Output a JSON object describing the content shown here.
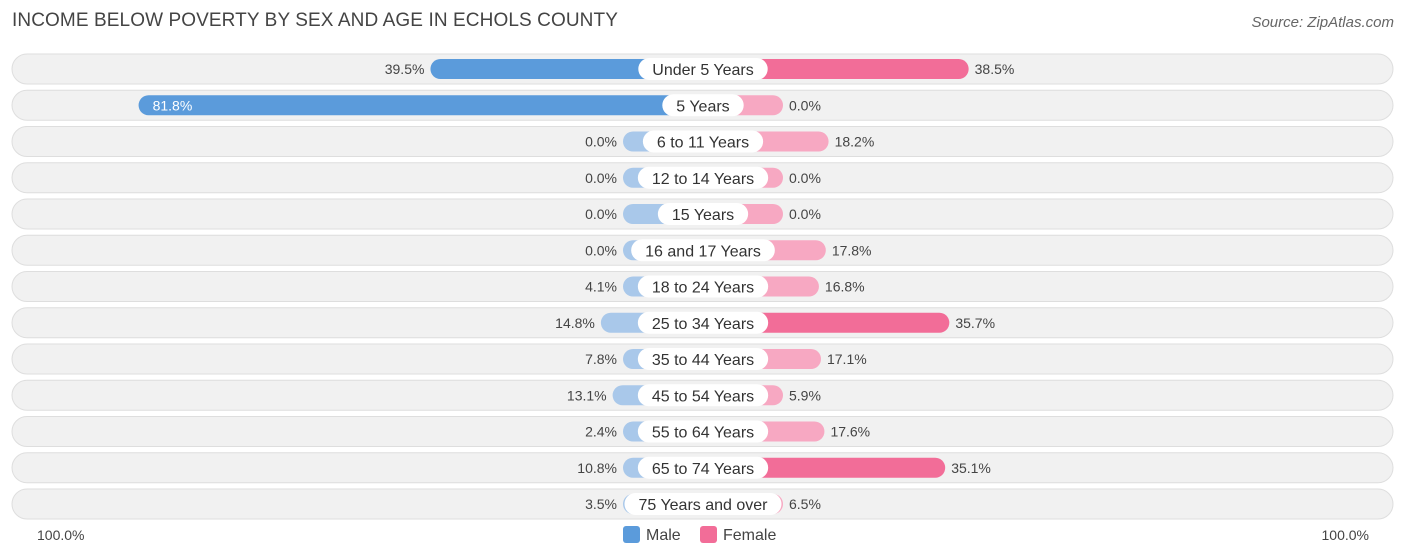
{
  "title": "INCOME BELOW POVERTY BY SEX AND AGE IN ECHOLS COUNTY",
  "source": "Source: ZipAtlas.com",
  "colors": {
    "male_strong": "#5b9bdb",
    "male_light": "#a9c8ea",
    "female_strong": "#f26d98",
    "female_light": "#f7a8c2",
    "row_bg": "#f1f1f1",
    "row_border": "#dedede"
  },
  "chart_data": {
    "type": "bar",
    "orientation": "horizontal-diverging",
    "title": "INCOME BELOW POVERTY BY SEX AND AGE IN ECHOLS COUNTY",
    "categories": [
      "Under 5 Years",
      "5 Years",
      "6 to 11 Years",
      "12 to 14 Years",
      "15 Years",
      "16 and 17 Years",
      "18 to 24 Years",
      "25 to 34 Years",
      "35 to 44 Years",
      "45 to 54 Years",
      "55 to 64 Years",
      "65 to 74 Years",
      "75 Years and over"
    ],
    "series": [
      {
        "name": "Male",
        "values": [
          39.5,
          81.8,
          0.0,
          0.0,
          0.0,
          0.0,
          4.1,
          14.8,
          7.8,
          13.1,
          2.4,
          10.8,
          3.5
        ],
        "labels": [
          "39.5%",
          "81.8%",
          "0.0%",
          "0.0%",
          "0.0%",
          "0.0%",
          "4.1%",
          "14.8%",
          "7.8%",
          "13.1%",
          "2.4%",
          "10.8%",
          "3.5%"
        ]
      },
      {
        "name": "Female",
        "values": [
          38.5,
          0.0,
          18.2,
          0.0,
          0.0,
          17.8,
          16.8,
          35.7,
          17.1,
          5.9,
          17.6,
          35.1,
          6.5
        ],
        "labels": [
          "38.5%",
          "0.0%",
          "18.2%",
          "0.0%",
          "0.0%",
          "17.8%",
          "16.8%",
          "35.7%",
          "17.1%",
          "5.9%",
          "17.6%",
          "35.1%",
          "6.5%"
        ]
      }
    ],
    "xlim": [
      -100,
      100
    ],
    "axis_left_label": "100.0%",
    "axis_right_label": "100.0%",
    "legend": [
      "Male",
      "Female"
    ],
    "legend_position": "bottom-center"
  }
}
